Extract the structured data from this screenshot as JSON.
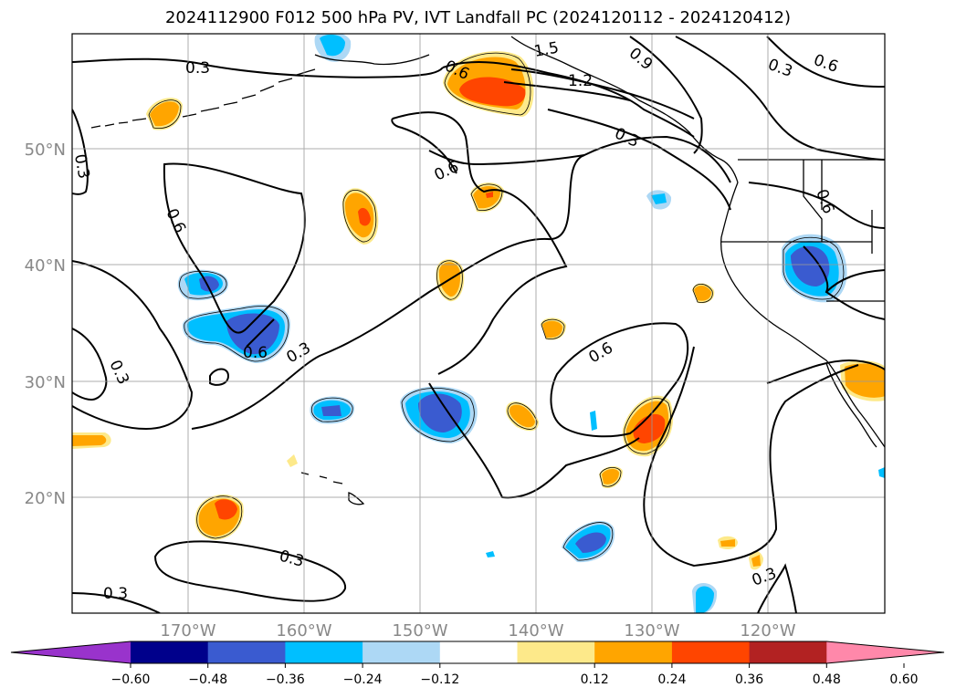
{
  "title": "2024112900 F012 500 hPa PV, IVT Landfall PC (2024120112 - 2024120412)",
  "map": {
    "lat_labels": [
      "50°N",
      "40°N",
      "30°N",
      "20°N"
    ],
    "lon_labels": [
      "170°W",
      "160°W",
      "150°W",
      "140°W",
      "130°W",
      "120°W"
    ],
    "contour_labels": [
      "0.3",
      "0.6",
      "0.9",
      "1.2",
      "1.5",
      "0.6",
      "0.3",
      "0.6",
      "0.6",
      "0.3",
      "0.6",
      "0.3",
      "0.3",
      "0.6",
      "0.3",
      "0.3",
      "0.3",
      "0.3",
      "0.6"
    ],
    "grid": true,
    "projection": "lat-lon"
  },
  "colorbar": {
    "orientation": "horizontal",
    "extend": "both",
    "colors": [
      "#9933cc",
      "#00008b",
      "#3a5bd0",
      "#00bfff",
      "#add8f5",
      "#ffffff",
      "#fde98a",
      "#ffa500",
      "#ff4500",
      "#b22222",
      "#ff88aa"
    ],
    "ticks": [
      "−0.60",
      "−0.48",
      "−0.36",
      "−0.24",
      "−0.12",
      "0.12",
      "0.24",
      "0.36",
      "0.48",
      "0.60"
    ]
  },
  "legend_colors": {
    "neg_weak": "#add8f5",
    "neg_mid": "#00bfff",
    "neg_strong": "#3a5bd0",
    "pos_weak": "#fde98a",
    "pos_mid": "#ffa500",
    "pos_strong": "#ff4500"
  }
}
